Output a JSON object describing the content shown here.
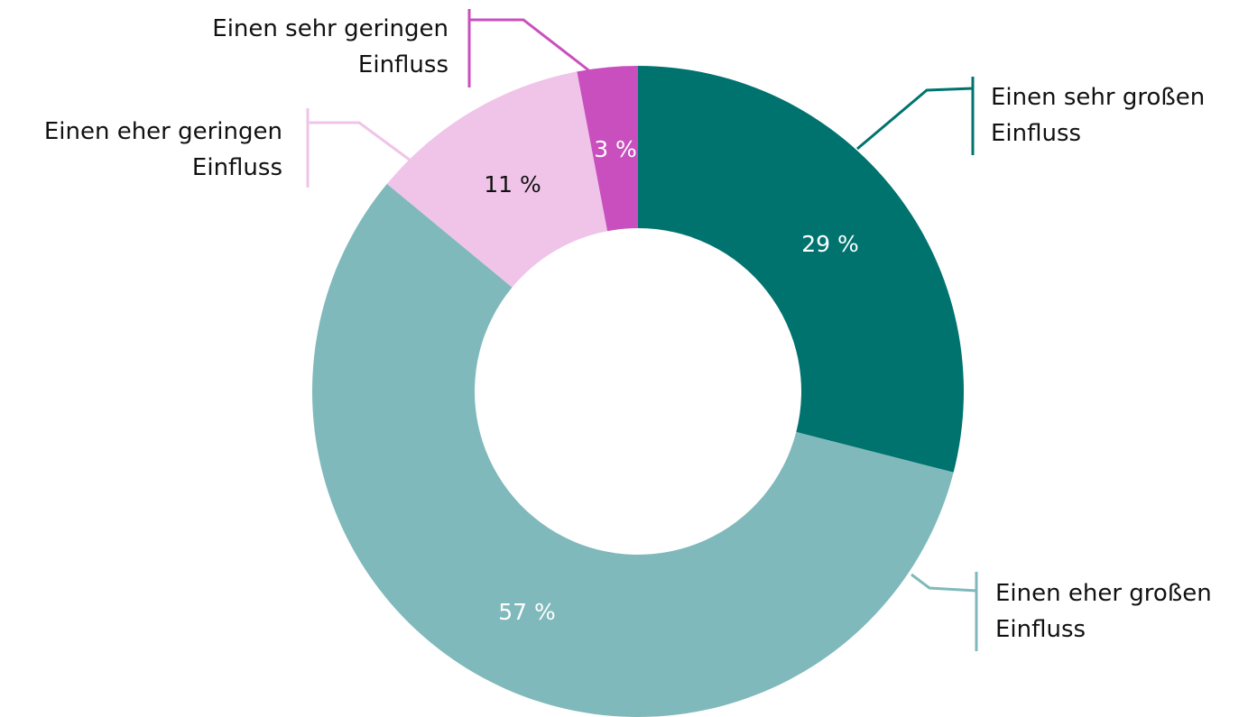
{
  "chart_data": {
    "type": "donut",
    "categories": [
      "Einen sehr großen Einfluss",
      "Einen eher großen Einfluss",
      "Einen eher geringen Einfluss",
      "Einen sehr geringen Einfluss"
    ],
    "values": [
      29,
      57,
      11,
      3
    ],
    "value_labels": [
      "29 %",
      "57 %",
      "11 %",
      "3 %"
    ],
    "colors": [
      "#00736f",
      "#80b9bb",
      "#efc4e8",
      "#c94fbe"
    ]
  }
}
